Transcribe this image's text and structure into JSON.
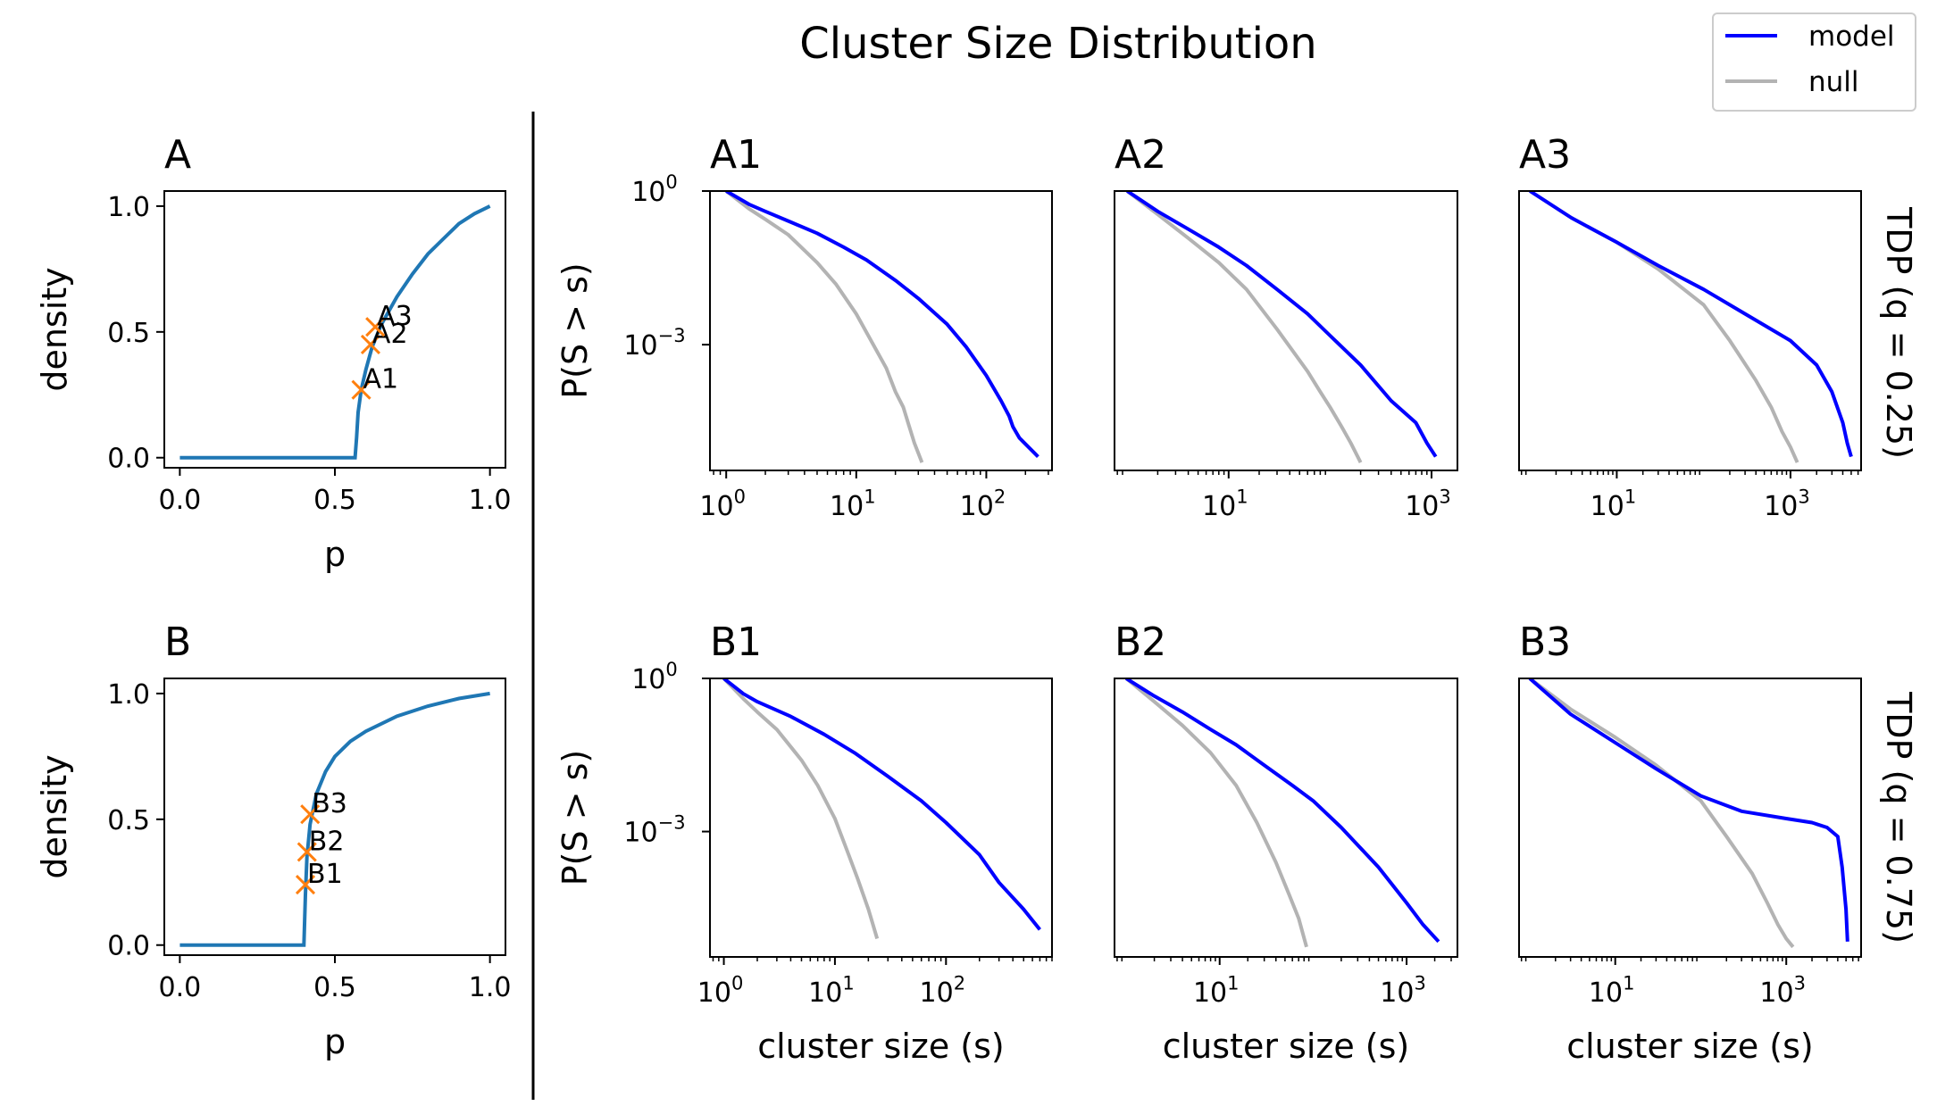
{
  "figure": {
    "title": "Cluster Size Distribution",
    "colors": {
      "model": "#0000ff",
      "null": "#b3b3b3",
      "density_curve": "#1f77b4",
      "marker": "#ff7f0e"
    }
  },
  "legend": {
    "placement": "top-right",
    "entries": [
      {
        "label": "model",
        "color": "#0000ff"
      },
      {
        "label": "null",
        "color": "#b3b3b3"
      }
    ]
  },
  "row_labels": [
    "TDP (q = 0.25)",
    "TDP (q = 0.75)"
  ],
  "chart_data": [
    {
      "type": "line",
      "panel": "A",
      "title": "A",
      "xlabel": "p",
      "ylabel": "density",
      "xlim": [
        -0.05,
        1.05
      ],
      "ylim": [
        -0.04,
        1.06
      ],
      "xticks": [
        "0.0",
        "0.5",
        "1.0"
      ],
      "yticks": [
        "0.0",
        "0.5",
        "1.0"
      ],
      "series": [
        {
          "values_x": [
            0,
            0.565,
            0.57,
            0.575,
            0.585,
            0.6,
            0.62,
            0.65,
            0.7,
            0.75,
            0.8,
            0.85,
            0.9,
            0.95,
            1.0
          ],
          "values_y": [
            0,
            0,
            0.08,
            0.18,
            0.27,
            0.35,
            0.44,
            0.53,
            0.64,
            0.73,
            0.81,
            0.87,
            0.93,
            0.97,
            1.0
          ]
        }
      ],
      "markers": [
        {
          "label": "A1",
          "x": 0.585,
          "y": 0.27
        },
        {
          "label": "A2",
          "x": 0.615,
          "y": 0.45
        },
        {
          "label": "A3",
          "x": 0.63,
          "y": 0.52
        }
      ]
    },
    {
      "type": "line",
      "panel": "B",
      "title": "B",
      "xlabel": "p",
      "ylabel": "density",
      "xlim": [
        -0.05,
        1.05
      ],
      "ylim": [
        -0.04,
        1.06
      ],
      "xticks": [
        "0.0",
        "0.5",
        "1.0"
      ],
      "yticks": [
        "0.0",
        "0.5",
        "1.0"
      ],
      "series": [
        {
          "values_x": [
            0,
            0.4,
            0.405,
            0.41,
            0.42,
            0.44,
            0.47,
            0.5,
            0.55,
            0.6,
            0.7,
            0.8,
            0.9,
            1.0
          ],
          "values_y": [
            0,
            0,
            0.2,
            0.35,
            0.48,
            0.6,
            0.69,
            0.75,
            0.81,
            0.85,
            0.91,
            0.95,
            0.98,
            1.0
          ]
        }
      ],
      "markers": [
        {
          "label": "B1",
          "x": 0.405,
          "y": 0.24
        },
        {
          "label": "B2",
          "x": 0.41,
          "y": 0.37
        },
        {
          "label": "B3",
          "x": 0.42,
          "y": 0.52
        }
      ]
    },
    {
      "type": "line",
      "panel": "A1",
      "title": "A1",
      "scale": "log-log",
      "xlabel": "",
      "ylabel": "P(S > s)",
      "xlim": [
        0.75,
        320
      ],
      "ylim": [
        3.5e-06,
        1
      ],
      "xticks": [
        1,
        10,
        100
      ],
      "yticks": [
        1,
        0.001
      ],
      "series": [
        {
          "name": "model",
          "x": [
            1,
            1.5,
            2,
            3,
            5,
            8,
            12,
            20,
            30,
            50,
            70,
            100,
            130,
            150,
            160,
            180,
            250
          ],
          "y": [
            1,
            0.55,
            0.4,
            0.26,
            0.15,
            0.08,
            0.045,
            0.018,
            0.008,
            0.0025,
            0.0009,
            0.00025,
            8e-05,
            4e-05,
            2.5e-05,
            1.5e-05,
            6.5e-06
          ]
        },
        {
          "name": "null",
          "x": [
            1,
            1.5,
            2,
            3,
            5,
            7,
            10,
            13,
            17,
            20,
            23,
            25,
            28,
            32
          ],
          "y": [
            1,
            0.45,
            0.28,
            0.14,
            0.04,
            0.015,
            0.004,
            0.0012,
            0.00035,
            0.00012,
            6e-05,
            3e-05,
            1.2e-05,
            5e-06
          ]
        }
      ]
    },
    {
      "type": "line",
      "panel": "A2",
      "title": "A2",
      "scale": "log-log",
      "xlabel": "",
      "ylabel": "",
      "xlim": [
        0.75,
        1800
      ],
      "ylim": [
        3.5e-06,
        1
      ],
      "xticks": [
        10,
        1000
      ],
      "yticks": [],
      "series": [
        {
          "name": "model",
          "x": [
            1,
            2,
            4,
            8,
            15,
            30,
            60,
            100,
            200,
            400,
            700,
            900,
            1100
          ],
          "y": [
            1,
            0.4,
            0.18,
            0.08,
            0.035,
            0.012,
            0.004,
            0.0015,
            0.0004,
            8e-05,
            3e-05,
            1.2e-05,
            6.5e-06
          ]
        },
        {
          "name": "null",
          "x": [
            1,
            2,
            4,
            8,
            15,
            30,
            60,
            80,
            100,
            130,
            160,
            200
          ],
          "y": [
            1,
            0.35,
            0.12,
            0.04,
            0.012,
            0.002,
            0.0003,
            0.00012,
            6e-05,
            2.5e-05,
            1.2e-05,
            5e-06
          ]
        }
      ]
    },
    {
      "type": "line",
      "panel": "A3",
      "title": "A3",
      "scale": "log-log",
      "xlabel": "",
      "ylabel": "",
      "xlim": [
        0.75,
        6500
      ],
      "ylim": [
        3.5e-06,
        1
      ],
      "xticks": [
        10,
        1000
      ],
      "yticks": [],
      "series": [
        {
          "name": "model",
          "x": [
            1,
            3,
            10,
            30,
            100,
            300,
            1000,
            2000,
            3000,
            4000,
            4500,
            5000
          ],
          "y": [
            1,
            0.3,
            0.1,
            0.035,
            0.012,
            0.004,
            0.0012,
            0.0004,
            0.00012,
            3e-05,
            1.2e-05,
            6.5e-06
          ]
        },
        {
          "name": "null",
          "x": [
            1,
            3,
            10,
            30,
            100,
            200,
            400,
            600,
            800,
            1000,
            1200
          ],
          "y": [
            1,
            0.3,
            0.1,
            0.03,
            0.006,
            0.0012,
            0.0002,
            6e-05,
            2e-05,
            1e-05,
            5e-06
          ]
        }
      ]
    },
    {
      "type": "line",
      "panel": "B1",
      "title": "B1",
      "scale": "log-log",
      "xlabel": "cluster size (s)",
      "ylabel": "P(S > s)",
      "xlim": [
        0.75,
        900
      ],
      "ylim": [
        3.5e-06,
        1
      ],
      "xticks": [
        1,
        10,
        100
      ],
      "yticks": [
        1,
        0.001
      ],
      "series": [
        {
          "name": "model",
          "x": [
            1,
            1.5,
            2,
            4,
            8,
            15,
            30,
            60,
            100,
            200,
            300,
            500,
            700
          ],
          "y": [
            1,
            0.5,
            0.35,
            0.18,
            0.08,
            0.035,
            0.012,
            0.004,
            0.0015,
            0.00035,
            0.0001,
            3e-05,
            1.2e-05
          ]
        },
        {
          "name": "null",
          "x": [
            1,
            1.5,
            2,
            3,
            5,
            7,
            10,
            13,
            16,
            20,
            24
          ],
          "y": [
            1,
            0.4,
            0.22,
            0.1,
            0.025,
            0.008,
            0.0018,
            0.0004,
            0.00012,
            3e-05,
            8e-06
          ]
        }
      ]
    },
    {
      "type": "line",
      "panel": "B2",
      "title": "B2",
      "scale": "log-log",
      "xlabel": "cluster size (s)",
      "ylabel": "",
      "xlim": [
        0.75,
        3500
      ],
      "ylim": [
        3.5e-06,
        1
      ],
      "xticks": [
        10,
        1000
      ],
      "yticks": [],
      "series": [
        {
          "name": "model",
          "x": [
            1,
            2,
            4,
            8,
            15,
            30,
            60,
            100,
            200,
            500,
            1000,
            1500,
            2200
          ],
          "y": [
            1,
            0.45,
            0.22,
            0.1,
            0.05,
            0.02,
            0.008,
            0.004,
            0.0012,
            0.0002,
            4e-05,
            1.5e-05,
            7e-06
          ]
        },
        {
          "name": "null",
          "x": [
            1,
            2,
            4,
            8,
            15,
            25,
            40,
            55,
            70,
            85
          ],
          "y": [
            1,
            0.35,
            0.12,
            0.035,
            0.008,
            0.0015,
            0.00025,
            6e-05,
            2e-05,
            5.5e-06
          ]
        }
      ]
    },
    {
      "type": "line",
      "panel": "B3",
      "title": "B3",
      "scale": "log-log",
      "xlabel": "cluster size (s)",
      "ylabel": "",
      "xlim": [
        0.75,
        7500
      ],
      "ylim": [
        3.5e-06,
        1
      ],
      "xticks": [
        10,
        1000
      ],
      "yticks": [],
      "series": [
        {
          "name": "model",
          "x": [
            1,
            3,
            10,
            30,
            100,
            300,
            1000,
            2000,
            3000,
            4000,
            4500,
            5000,
            5200
          ],
          "y": [
            1,
            0.2,
            0.055,
            0.017,
            0.005,
            0.0025,
            0.0018,
            0.0015,
            0.0012,
            0.0008,
            0.0002,
            3e-05,
            7e-06
          ]
        },
        {
          "name": "null",
          "x": [
            1,
            3,
            10,
            30,
            100,
            200,
            400,
            600,
            800,
            1000,
            1200
          ],
          "y": [
            1,
            0.25,
            0.07,
            0.02,
            0.004,
            0.0008,
            0.00015,
            4e-05,
            1.5e-05,
            8e-06,
            5.5e-06
          ]
        }
      ]
    }
  ]
}
